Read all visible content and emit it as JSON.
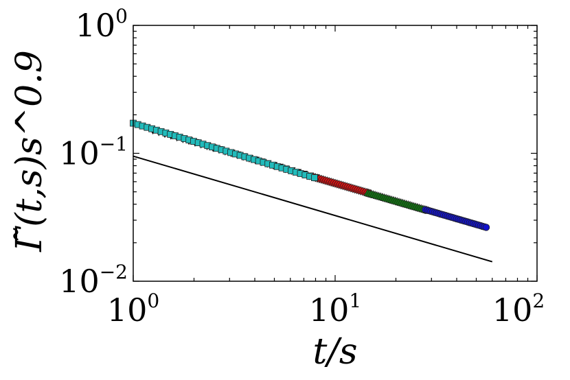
{
  "chart_data": {
    "type": "scatter",
    "xscale": "log",
    "yscale": "log",
    "xlim": [
      1,
      100
    ],
    "ylim": [
      0.01,
      1
    ],
    "xlabel": "t/s",
    "ylabel": "Γ̃(t,s)s^0.9",
    "x_ticks": [
      {
        "value": 1,
        "base": "10",
        "exp": "0"
      },
      {
        "value": 10,
        "base": "10",
        "exp": "1"
      },
      {
        "value": 100,
        "base": "10",
        "exp": "2"
      }
    ],
    "y_ticks": [
      {
        "value": 1,
        "base": "10",
        "exp": "0"
      },
      {
        "value": 0.1,
        "base": "10",
        "exp": "−1"
      },
      {
        "value": 0.01,
        "base": "10",
        "exp": "−2"
      }
    ],
    "grid": false,
    "reference_line": {
      "points": [
        [
          1,
          0.095
        ],
        [
          60,
          0.0142
        ]
      ],
      "color": "#000000"
    },
    "series": [
      {
        "marker": "triangle-down",
        "color": "#000000",
        "x_range": [
          1.25,
          8
        ],
        "count": 28,
        "y_at_1": 0.168,
        "exponent": -0.46
      },
      {
        "marker": "diamond",
        "color": "#dd1111",
        "x_range": [
          7.8,
          15
        ],
        "count": 30,
        "y_at_1": 0.168,
        "exponent": -0.46
      },
      {
        "marker": "triangle-up",
        "color": "#117711",
        "x_range": [
          14.5,
          29
        ],
        "count": 34,
        "y_at_1": 0.168,
        "exponent": -0.46
      },
      {
        "marker": "circle",
        "color": "#1111cc",
        "x_range": [
          28,
          56
        ],
        "count": 34,
        "y_at_1": 0.168,
        "exponent": -0.46
      },
      {
        "marker": "square",
        "color": "#22bbbb",
        "x_range": [
          1,
          7.9
        ],
        "count": 40,
        "y_at_1": 0.172,
        "exponent": -0.475
      }
    ]
  }
}
